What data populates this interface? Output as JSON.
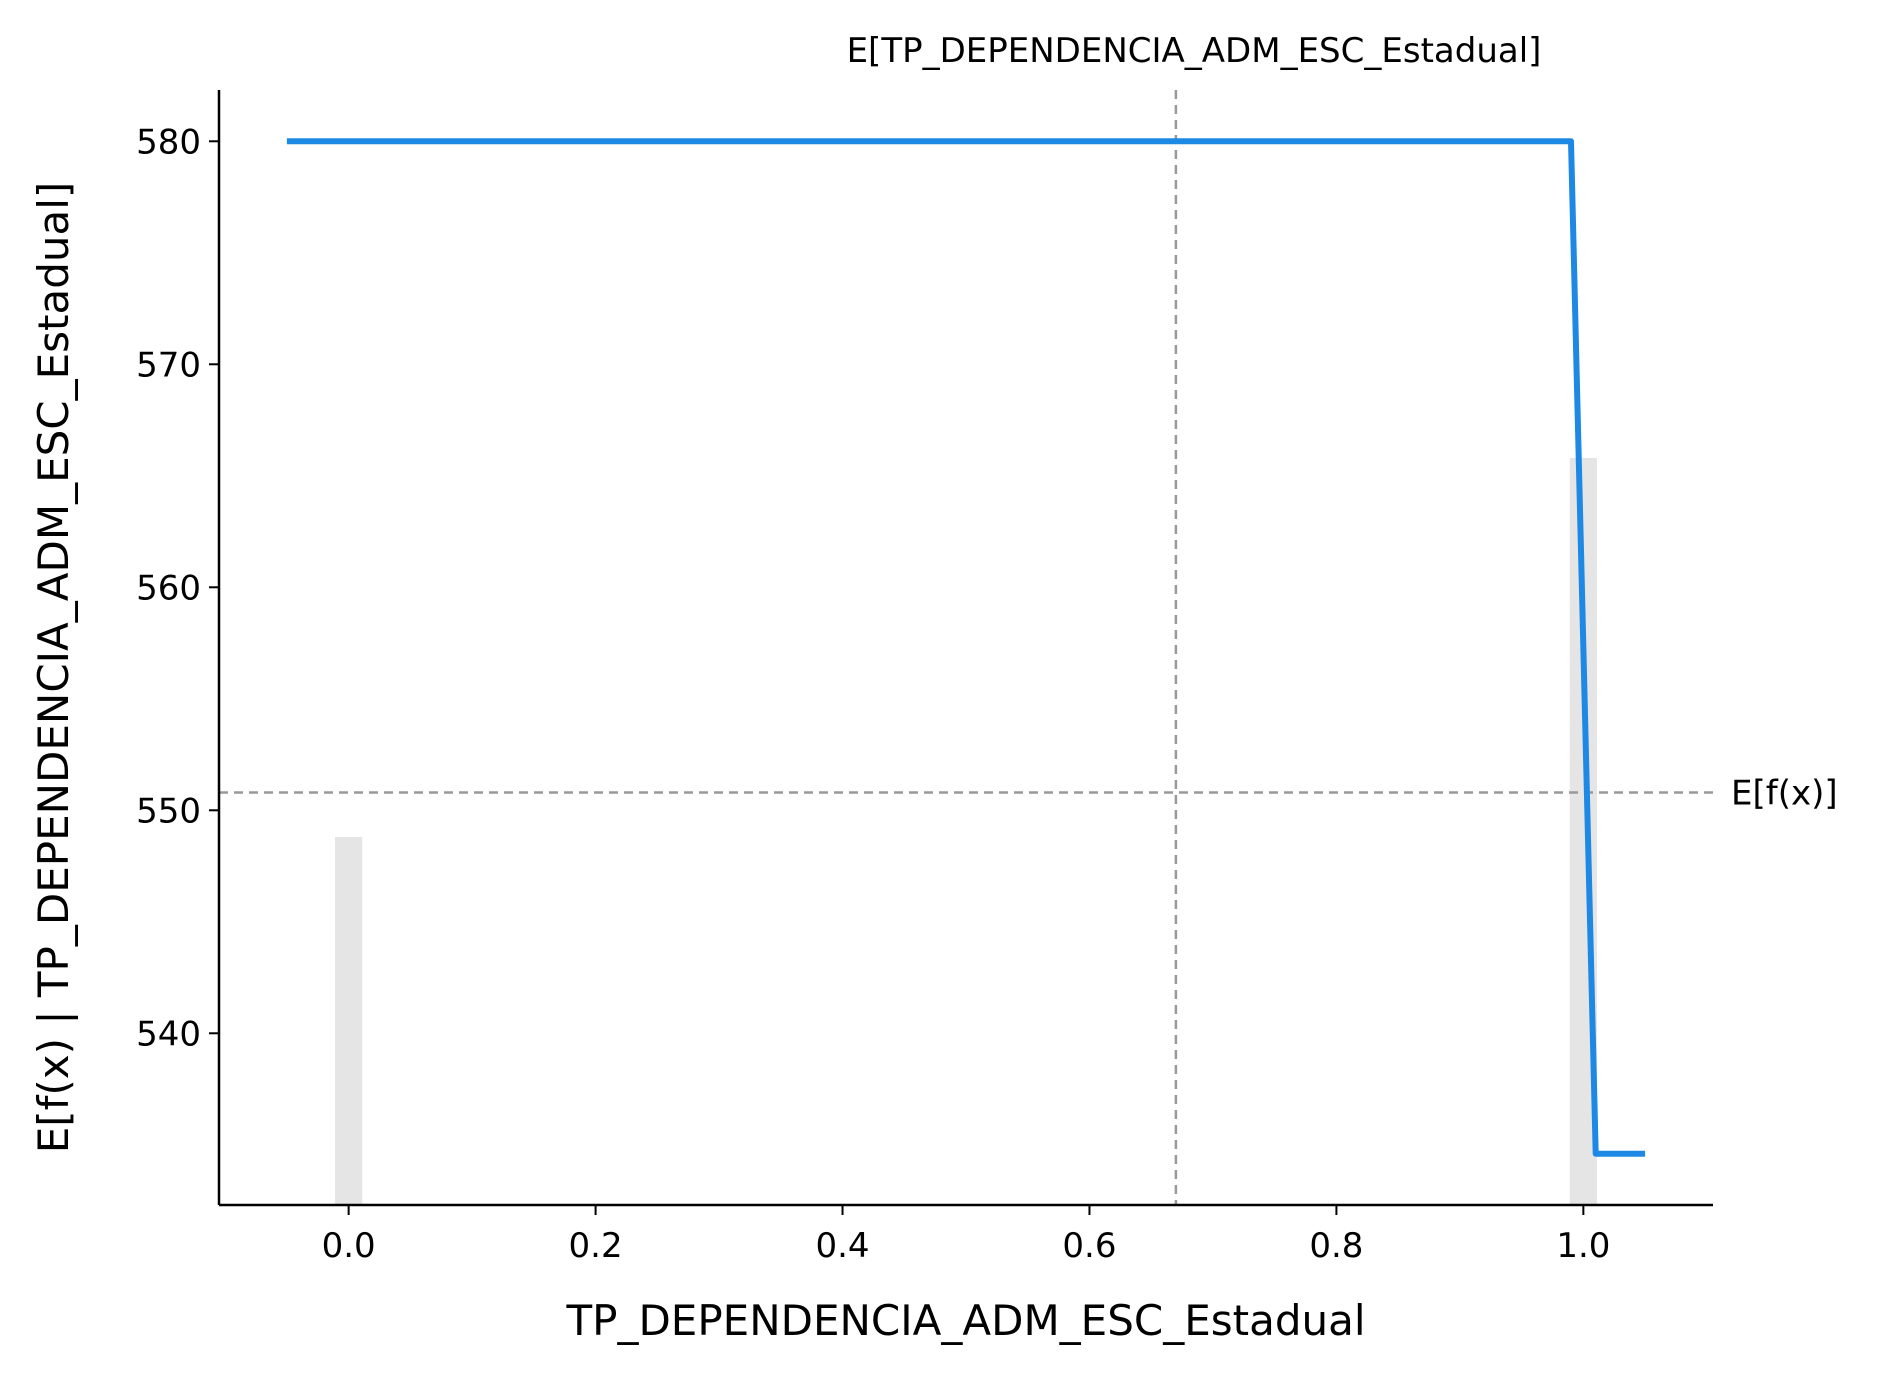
{
  "chart_data": {
    "type": "line",
    "title": "",
    "xlabel": "TP_DEPENDENCIA_ADM_ESC_Estadual",
    "ylabel": "E[f(x) | TP_DEPENDENCIA_ADM_ESC_Estadual]",
    "xlim": [
      -0.105,
      1.105
    ],
    "ylim": [
      532.3,
      582.3
    ],
    "x_ticks": [
      0.0,
      0.2,
      0.4,
      0.6,
      0.8,
      1.0
    ],
    "x_tick_labels": [
      "0.0",
      "0.2",
      "0.4",
      "0.6",
      "0.8",
      "1.0"
    ],
    "y_ticks": [
      540,
      550,
      560,
      570,
      580
    ],
    "y_tick_labels": [
      "540",
      "550",
      "560",
      "570",
      "580"
    ],
    "series": [
      {
        "x": [
          -0.05,
          0.99,
          1.01,
          1.05
        ],
        "y": [
          580.0,
          580.0,
          534.6,
          534.6
        ],
        "color": "#1e88e5"
      }
    ],
    "histogram": {
      "x": [
        0.0,
        1.0
      ],
      "heights": [
        548.8,
        565.8
      ],
      "bar_width": 0.022,
      "color": "#e5e5e5"
    },
    "expected_value": {
      "value": 550.8,
      "label": "E[f(x)]"
    },
    "feature_expected_value": {
      "value": 0.67,
      "label": "E[TP_DEPENDENCIA_ADM_ESC_Estadual]"
    },
    "reference_line_color": "#999999",
    "grid": false,
    "legend": "none"
  }
}
